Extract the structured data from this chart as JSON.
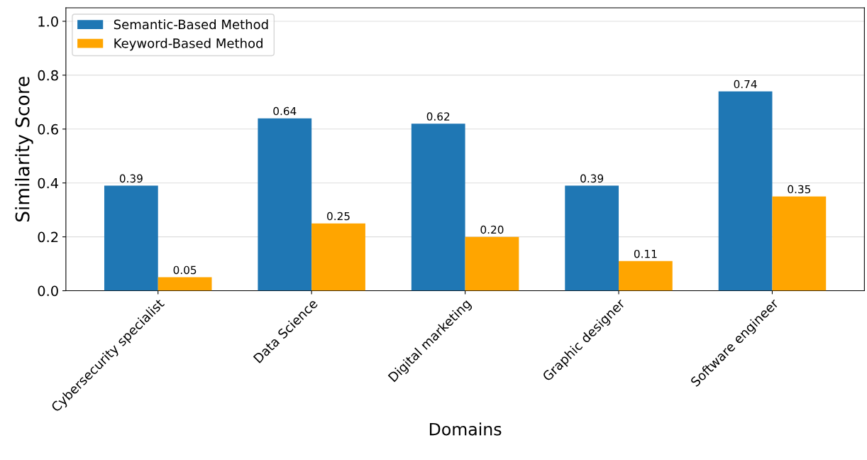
{
  "chart_data": {
    "type": "bar",
    "xlabel": "Domains",
    "ylabel": "Similarity Score",
    "categories": [
      "Cybersecurity specialist",
      "Data Science",
      "Digital marketing",
      "Graphic designer",
      "Software engineer"
    ],
    "series": [
      {
        "name": "Semantic-Based Method",
        "color": "#1f77b4",
        "values": [
          0.39,
          0.64,
          0.62,
          0.39,
          0.74
        ],
        "value_labels": [
          "0.39",
          "0.64",
          "0.62",
          "0.39",
          "0.74"
        ]
      },
      {
        "name": "Keyword-Based Method",
        "color": "#ffa500",
        "values": [
          0.05,
          0.25,
          0.2,
          0.11,
          0.35
        ],
        "value_labels": [
          "0.05",
          "0.25",
          "0.20",
          "0.11",
          "0.35"
        ]
      }
    ],
    "ylim": [
      0,
      1.05
    ],
    "yticks": [
      {
        "value": 0,
        "label": "0.0"
      },
      {
        "value": 0.2,
        "label": "0.2"
      },
      {
        "value": 0.4,
        "label": "0.4"
      },
      {
        "value": 0.6,
        "label": "0.6"
      },
      {
        "value": 0.8,
        "label": "0.8"
      },
      {
        "value": 1.0,
        "label": "1.0"
      }
    ],
    "grid": "y",
    "legend": "top left"
  }
}
